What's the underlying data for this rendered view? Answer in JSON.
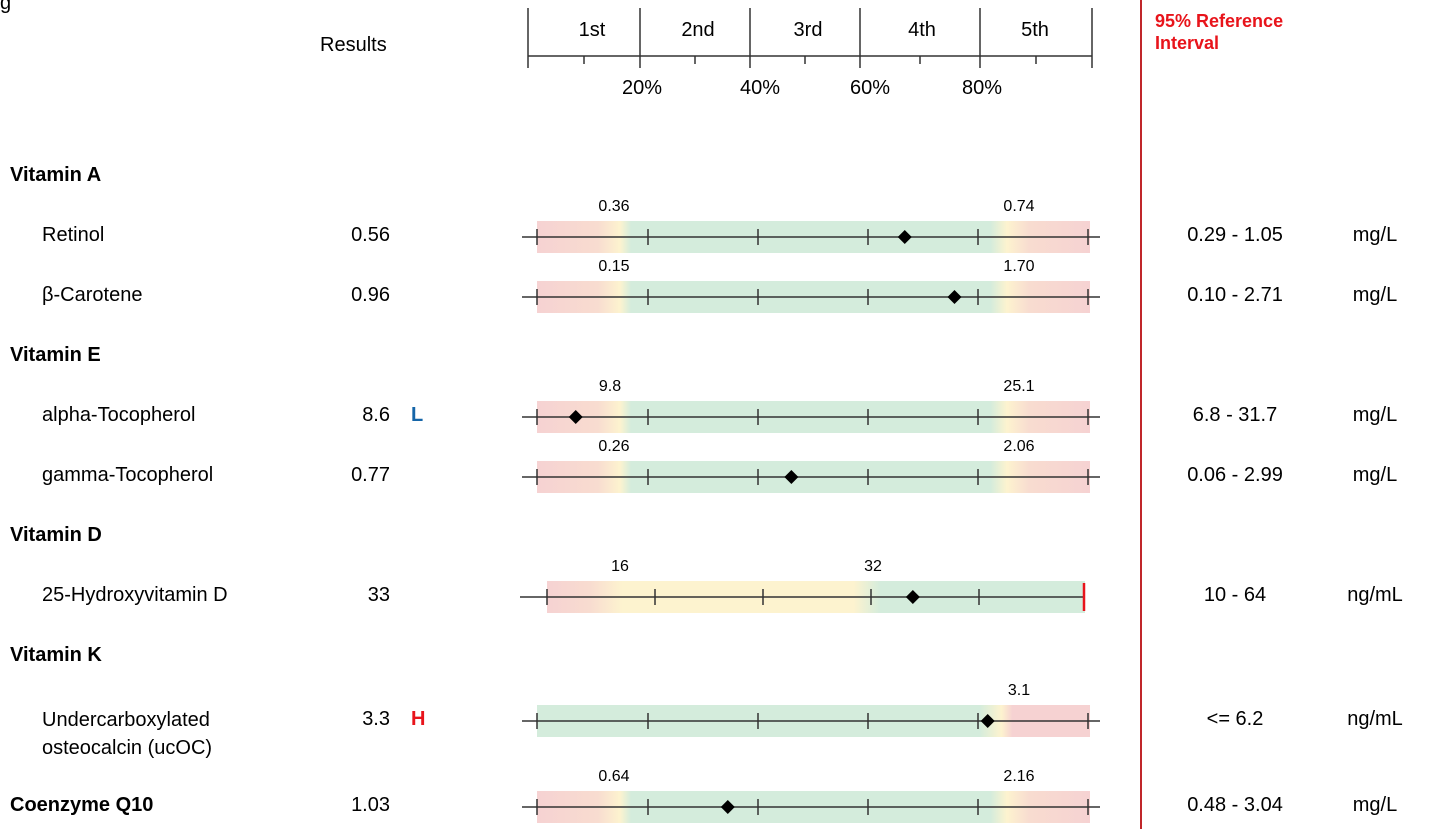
{
  "header": {
    "top_fragment": "g",
    "results_label": "Results",
    "ref_header": "95% Reference Interval",
    "quintiles": [
      "1st",
      "2nd",
      "3rd",
      "4th",
      "5th"
    ],
    "percents": [
      "20%",
      "40%",
      "60%",
      "80%"
    ]
  },
  "sections": [
    {
      "title": "Vitamin A"
    },
    {
      "title": "Vitamin E"
    },
    {
      "title": "Vitamin D"
    },
    {
      "title": "Vitamin K"
    }
  ],
  "rows": [
    {
      "name": "Retinol",
      "result": "0.56",
      "flag": "",
      "low_label": "0.36",
      "high_label": "0.74",
      "ref": "0.29 - 1.05",
      "unit": "mg/L",
      "percentile": 66.5,
      "bar": "normal"
    },
    {
      "name": "β-Carotene",
      "result": "0.96",
      "flag": "",
      "low_label": "0.15",
      "high_label": "1.70",
      "ref": "0.10 - 2.71",
      "unit": "mg/L",
      "percentile": 75.5,
      "bar": "normal"
    },
    {
      "name": "alpha-Tocopherol",
      "result": "8.6",
      "flag": "L",
      "low_label": "9.8",
      "high_label": "25.1",
      "ref": "6.8 - 31.7",
      "unit": "mg/L",
      "percentile": 7,
      "bar": "normal"
    },
    {
      "name": "gamma-Tocopherol",
      "result": "0.77",
      "flag": "",
      "low_label": "0.26",
      "high_label": "2.06",
      "ref": "0.06 - 2.99",
      "unit": "mg/L",
      "percentile": 46,
      "bar": "normal"
    },
    {
      "name": "25-Hydroxyvitamin D",
      "result": "33",
      "flag": "",
      "low_label": "16",
      "high_label": "32",
      "ref": "10 - 64",
      "unit": "ng/mL",
      "percentile": 68,
      "bar": "vitd"
    },
    {
      "name": "Undercarboxylated osteocalcin (ucOC)",
      "result": "3.3",
      "flag": "H",
      "low_label": "",
      "high_label": "3.1",
      "ref": "<= 6.2",
      "unit": "ng/mL",
      "percentile": 81.5,
      "bar": "vitk"
    },
    {
      "name": "Coenzyme Q10",
      "result": "1.03",
      "flag": "",
      "low_label": "0.64",
      "high_label": "2.16",
      "ref": "0.48 - 3.04",
      "unit": "mg/L",
      "percentile": 34.5,
      "bar": "normal"
    }
  ],
  "colors": {
    "red_zone": "#f6d2d2",
    "yellow_zone": "#fdf3cf",
    "green_zone": "#d4ecdc",
    "axis": "#333333",
    "flag_high": "#e8141b",
    "flag_low": "#1565a8",
    "divider": "#c0262a"
  }
}
